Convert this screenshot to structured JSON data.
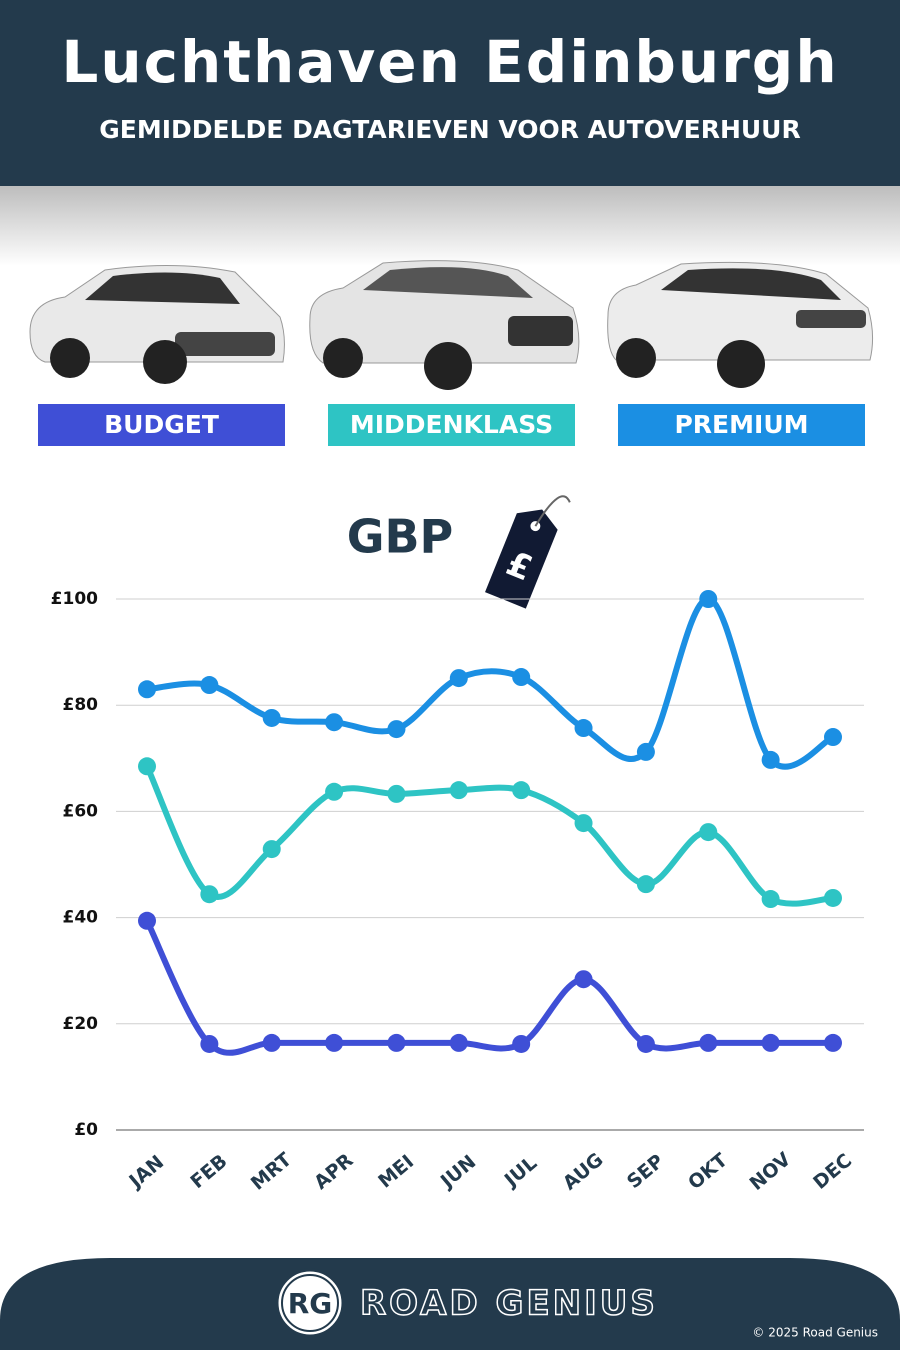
{
  "chart_data": {
    "type": "line",
    "title": "Luchthaven Edinburgh",
    "subtitle": "GEMIDDELDE DAGTARIEVEN VOOR AUTOVERHUUR",
    "currency_label": "GBP",
    "tag_symbol": "£",
    "categories": [
      "JAN",
      "FEB",
      "MRT",
      "APR",
      "MEI",
      "JUN",
      "JUL",
      "AUG",
      "SEP",
      "OKT",
      "NOV",
      "DEC"
    ],
    "series": [
      {
        "name": "BUDGET",
        "color": "#3f4fd6",
        "values": [
          39.4,
          16.2,
          16.4,
          16.4,
          16.4,
          16.4,
          16.2,
          28.4,
          16.2,
          16.4,
          16.4,
          16.4
        ]
      },
      {
        "name": "MIDDENKLASS",
        "color": "#2ec4c4",
        "values": [
          68.5,
          44.4,
          52.9,
          63.7,
          63.3,
          64,
          64,
          57.8,
          46.3,
          56.1,
          43.5,
          43.7
        ]
      },
      {
        "name": "PREMIUM",
        "color": "#1b8fe3",
        "values": [
          83,
          83.8,
          77.6,
          76.8,
          75.5,
          85.1,
          85.3,
          75.7,
          71.2,
          100,
          69.7,
          74
        ]
      }
    ],
    "ylim": [
      0,
      100
    ],
    "yticks": [
      {
        "value": 0,
        "label": "£0"
      },
      {
        "value": 20,
        "label": "£20"
      },
      {
        "value": 40,
        "label": "£40"
      },
      {
        "value": 60,
        "label": "£60"
      },
      {
        "value": 80,
        "label": "£80"
      },
      {
        "value": 100,
        "label": "£100"
      }
    ],
    "grid": true
  },
  "footer": {
    "logo": "RG",
    "brand": "ROAD GENIUS",
    "copyright": "© 2025 Road Genius"
  }
}
